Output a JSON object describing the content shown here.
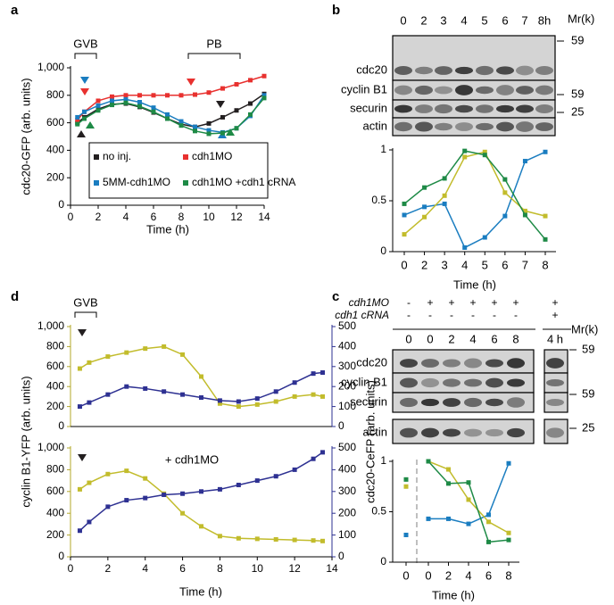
{
  "panel_labels": [
    "a",
    "b",
    "d",
    "c"
  ],
  "chart_data": [
    {
      "type": "line",
      "xlabel": "Time (h)",
      "ylabel": "cdc20-GFP (arb. units)",
      "x": [
        0.5,
        1,
        2,
        3,
        4,
        5,
        6,
        7,
        8,
        9,
        10,
        11,
        12,
        13,
        14
      ],
      "xlim": [
        0,
        14
      ],
      "xticks": [
        0,
        2,
        4,
        6,
        8,
        10,
        12,
        14
      ],
      "ylim": [
        0,
        1000
      ],
      "yticks": [
        0,
        200,
        400,
        600,
        800,
        {
          "value": 1000,
          "label": "1,000"
        }
      ],
      "annotations": [
        "GVB",
        "PB"
      ],
      "series": [
        {
          "name": "no inj.",
          "color": "#231f20",
          "values": [
            600,
            640,
            700,
            735,
            740,
            715,
            675,
            630,
            590,
            570,
            595,
            640,
            690,
            740,
            810
          ]
        },
        {
          "name": "cdh1MO",
          "color": "#e8312f",
          "values": [
            620,
            680,
            760,
            790,
            800,
            800,
            800,
            800,
            800,
            805,
            820,
            850,
            880,
            910,
            940
          ]
        },
        {
          "name": "5MM-cdh1MO",
          "color": "#1a7dc0",
          "values": [
            640,
            680,
            725,
            760,
            770,
            750,
            710,
            660,
            610,
            570,
            545,
            530,
            560,
            650,
            800
          ]
        },
        {
          "name": "cdh1MO +cdh1 cRNA",
          "color": "#1e8a46",
          "values": [
            590,
            630,
            690,
            730,
            745,
            720,
            680,
            630,
            580,
            540,
            520,
            525,
            560,
            660,
            780
          ]
        }
      ]
    },
    {
      "type": "line",
      "xlabel": "Time (h)",
      "categories": [
        "0",
        "2",
        "3",
        "4",
        "5",
        "6",
        "7",
        "8"
      ],
      "ylim": [
        0,
        1
      ],
      "yticks": [
        0,
        0.5,
        1
      ],
      "series": [
        {
          "name": "cdc20",
          "color": "#1a7dc0",
          "values": [
            0.36,
            0.44,
            0.47,
            0.04,
            0.14,
            0.35,
            0.89,
            0.98
          ]
        },
        {
          "name": "cyclin B1",
          "color": "#c2bc2c",
          "values": [
            0.17,
            0.34,
            0.55,
            0.93,
            0.98,
            0.58,
            0.4,
            0.35
          ]
        },
        {
          "name": "securin",
          "color": "#1e8a46",
          "values": [
            0.47,
            0.63,
            0.72,
            0.99,
            0.95,
            0.71,
            0.36,
            0.12
          ]
        }
      ]
    },
    {
      "type": "line",
      "ylabel": "cyclin B1-YFP (arb. units)",
      "y2label": "cdc20-CeFP (arb. units)",
      "x": [
        0.5,
        1,
        2,
        3,
        4,
        5,
        6,
        7,
        8,
        9,
        10,
        11,
        12,
        13,
        13.5
      ],
      "xlim": [
        0,
        14
      ],
      "ylim": [
        0,
        1000
      ],
      "yticks": [
        0,
        200,
        400,
        600,
        800,
        {
          "value": 1000,
          "label": "1,000"
        }
      ],
      "y2lim": [
        0,
        500
      ],
      "y2ticks": [
        0,
        100,
        200,
        300,
        400,
        500
      ],
      "y_axis_color": "#b3a82a",
      "y2_axis_color": "#2e3192",
      "annotations": [
        "GVB"
      ],
      "series": [
        {
          "name": "cyclin B1-YFP",
          "color": "#c2bc2c",
          "values": [
            580,
            640,
            700,
            740,
            780,
            800,
            720,
            500,
            230,
            200,
            220,
            250,
            300,
            320,
            300
          ]
        },
        {
          "name": "cdc20-CeFP",
          "color": "#2e3192",
          "axis": "y2",
          "values": [
            100,
            120,
            160,
            200,
            190,
            175,
            160,
            145,
            130,
            125,
            140,
            175,
            220,
            265,
            270
          ]
        }
      ]
    },
    {
      "type": "line",
      "xlabel": "Time (h)",
      "x": [
        0.5,
        1,
        2,
        3,
        4,
        5,
        6,
        7,
        8,
        9,
        10,
        11,
        12,
        13,
        13.5
      ],
      "xlim": [
        0,
        14
      ],
      "xticks": [
        0,
        2,
        4,
        6,
        8,
        10,
        12,
        14
      ],
      "ylim": [
        0,
        1000
      ],
      "yticks": [
        0,
        200,
        400,
        600,
        800,
        {
          "value": 1000,
          "label": "1,000"
        }
      ],
      "y2lim": [
        0,
        500
      ],
      "y2ticks": [
        0,
        100,
        200,
        300,
        400,
        500
      ],
      "y_axis_color": "#b3a82a",
      "y2_axis_color": "#2e3192",
      "annotations": [
        "+ cdh1MO"
      ],
      "series": [
        {
          "name": "cyclin B1-YFP",
          "color": "#c2bc2c",
          "values": [
            620,
            680,
            760,
            790,
            720,
            580,
            400,
            280,
            190,
            170,
            165,
            160,
            155,
            150,
            145
          ]
        },
        {
          "name": "cdc20-CeFP",
          "color": "#2e3192",
          "axis": "y2",
          "values": [
            120,
            160,
            230,
            260,
            270,
            285,
            290,
            300,
            310,
            330,
            350,
            370,
            400,
            450,
            480
          ]
        }
      ]
    },
    {
      "type": "line",
      "xlabel": "Time (h)",
      "categories": [
        "0",
        "0",
        "2",
        "4",
        "6",
        "8"
      ],
      "ylim": [
        0,
        1
      ],
      "yticks": [
        0,
        0.5,
        1
      ],
      "series": [
        {
          "name": "cdc20",
          "color": "#1a7dc0",
          "values": [
            0.27,
            0.43,
            0.43,
            0.38,
            0.47,
            0.98
          ]
        },
        {
          "name": "cyclin B1",
          "color": "#c2bc2c",
          "values": [
            0.75,
            1.0,
            0.92,
            0.62,
            0.4,
            0.29
          ]
        },
        {
          "name": "securin",
          "color": "#1e8a46",
          "values": [
            0.82,
            1.0,
            0.78,
            0.79,
            0.2,
            0.22
          ]
        }
      ]
    }
  ],
  "blots": [
    {
      "lanes": [
        "0",
        "2",
        "3",
        "4",
        "5",
        "6",
        "7",
        "8h"
      ],
      "rows": [
        {
          "label": "cdc20",
          "color": "#1a7dc0"
        },
        {
          "label": "cyclin B1",
          "color": "#b3a82a"
        },
        {
          "label": "securin",
          "color": "#1e8a46"
        },
        {
          "label": "actin",
          "color": "#000000"
        }
      ],
      "mr_label": "Mr(k)",
      "mr_values": [
        "59",
        "59",
        "25"
      ]
    },
    {
      "header_rows": [
        {
          "label": "cdh1MO",
          "signs": [
            "-",
            "+",
            "+",
            "+",
            "+",
            "+",
            "+"
          ]
        },
        {
          "label": "cdh1 cRNA",
          "signs": [
            "-",
            "-",
            "-",
            "-",
            "-",
            "-",
            "+"
          ]
        }
      ],
      "lanes": [
        "0",
        "0",
        "2",
        "4",
        "6",
        "8",
        "4 h"
      ],
      "rows": [
        {
          "label": "cdc20",
          "color": "#1a7dc0"
        },
        {
          "label": "cyclin B1",
          "color": "#b3a82a"
        },
        {
          "label": "securin",
          "color": "#1e8a46"
        },
        {
          "label": "actin",
          "color": "#000000"
        }
      ],
      "mr_label": "Mr(k)",
      "mr_values": [
        "59",
        "59",
        "25"
      ]
    }
  ]
}
